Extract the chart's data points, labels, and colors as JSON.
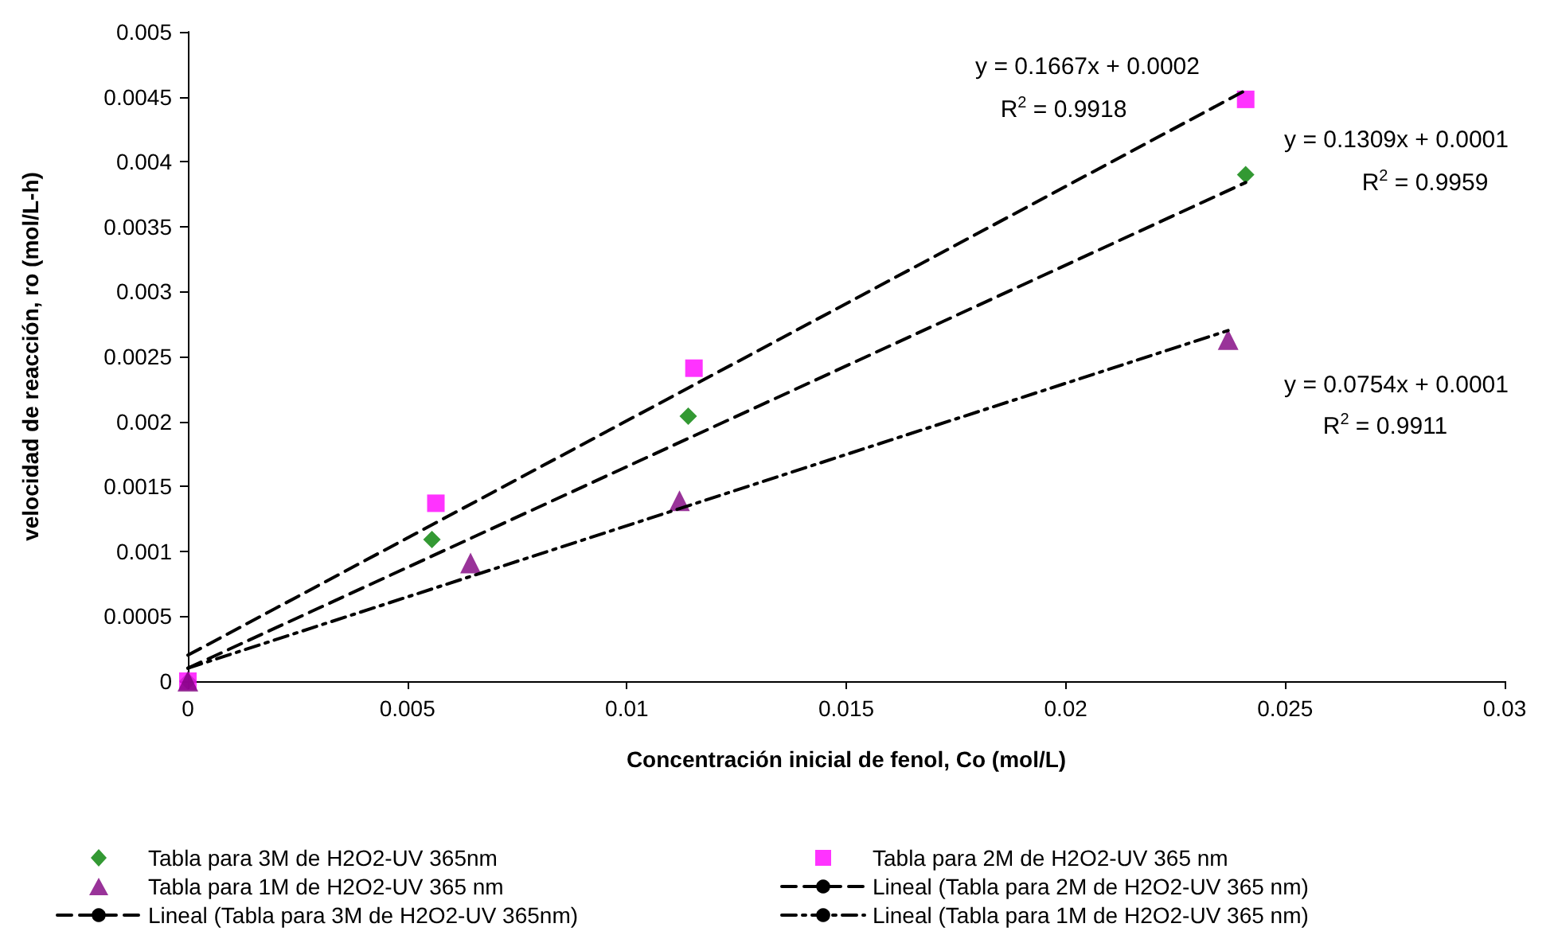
{
  "chart_data": {
    "type": "scatter",
    "xlabel": "Concentración inicial de fenol, Co (mol/L)",
    "ylabel": "velocidad de reacción, ro (mol/L-h)",
    "xlim": [
      0,
      0.03
    ],
    "xticks": [
      0,
      0.005,
      0.01,
      0.015,
      0.02,
      0.025,
      0.03
    ],
    "ylim": [
      0,
      0.005
    ],
    "yticks": [
      0,
      0.0005,
      0.001,
      0.0015,
      0.002,
      0.0025,
      0.003,
      0.0035,
      0.004,
      0.0045,
      0.005
    ],
    "grid": false,
    "legend": "bottom",
    "series": [
      {
        "name": "Tabla para 3M de H2O2-UV 365nm",
        "marker": "diamond",
        "color": "#008000",
        "x": [
          0,
          0.00556,
          0.0114,
          0.0241
        ],
        "values": [
          0,
          0.00109,
          0.00204,
          0.0039
        ]
      },
      {
        "name": "Tabla para 2M de H2O2-UV 365 nm",
        "marker": "square",
        "color": "#ff00ff",
        "x": [
          0,
          0.00565,
          0.01153,
          0.0241
        ],
        "values": [
          0,
          0.00137,
          0.00241,
          0.00448
        ]
      },
      {
        "name": "Tabla para 1M de H2O2-UV 365 nm",
        "marker": "triangle",
        "color": "#800080",
        "x": [
          0,
          0.00644,
          0.0112,
          0.0237
        ],
        "values": [
          0,
          0.00091,
          0.00139,
          0.00263
        ]
      },
      {
        "name": "Lineal (Tabla para 2M de H2O2-UV 365 nm)",
        "type": "line",
        "marker": "none",
        "line_style": "dashed",
        "color": "#000000",
        "x": [
          0,
          0.0241
        ],
        "values": [
          0.0002,
          0.00455
        ]
      },
      {
        "name": "Lineal (Tabla para 3M de H2O2-UV 365nm)",
        "type": "line",
        "marker": "none",
        "line_style": "dashed",
        "color": "#000000",
        "x": [
          0,
          0.0241
        ],
        "values": [
          0.0001,
          0.00384
        ]
      },
      {
        "name": "Lineal (Tabla para 1M de H2O2-UV 365 nm)",
        "type": "line",
        "marker": "none",
        "line_style": "dashdot",
        "color": "#000000",
        "x": [
          0,
          0.0237
        ],
        "values": [
          0.0001,
          0.0027
        ]
      }
    ],
    "annotations": [
      "y = 0.1667x + 0.0002",
      "R$^{2}$ = 0.9918",
      "y = 0.1309x + 0.0001",
      "R$^{2}$ = 0.9959",
      "y = 0.0754x + 0.0001",
      "R$^{2}$ = 0.9911"
    ]
  }
}
